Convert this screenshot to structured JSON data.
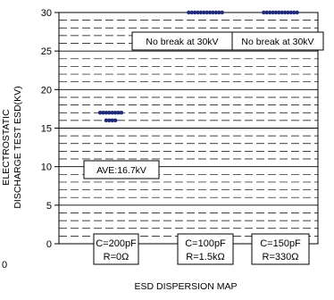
{
  "chart_data": {
    "type": "scatter",
    "title": "",
    "xlabel": "ESD DISPERSION MAP",
    "ylabel": [
      "ELECTROSTATIC",
      "DISCHARGE TEST ESD(KV)"
    ],
    "ylim": [
      0,
      30
    ],
    "y_ticks": [
      0,
      5,
      10,
      15,
      20,
      25,
      30
    ],
    "grid": {
      "major_every": 5,
      "minor_every": 1,
      "minor_style": "dashed"
    },
    "categories": [
      {
        "line1": "C=200pF",
        "line2": "R=0Ω"
      },
      {
        "line1": "C=100pF",
        "line2": "R=1.5kΩ"
      },
      {
        "line1": "C=150pF",
        "line2": "R=330Ω"
      }
    ],
    "series": [
      {
        "color": "#1f2a7a",
        "points": [
          {
            "category": 0,
            "y": 17.0,
            "count": 8
          },
          {
            "category": 0,
            "y": 16.0,
            "count": 4
          },
          {
            "category": 1,
            "y": 30.0,
            "count": 12
          },
          {
            "category": 2,
            "y": 30.0,
            "count": 12
          }
        ]
      }
    ],
    "annotations": [
      {
        "text": "No break at 30kV",
        "category": 1
      },
      {
        "text": "No break at 30kV",
        "category": 2
      },
      {
        "text": "AVE:16.7kV",
        "category": 0,
        "y": 10
      }
    ],
    "corner_label": "0"
  }
}
